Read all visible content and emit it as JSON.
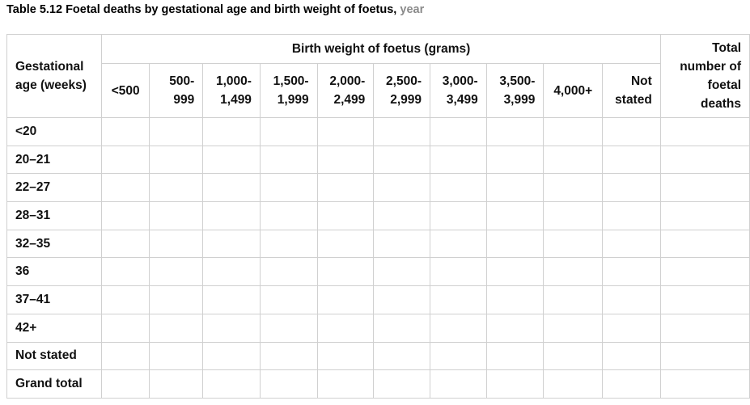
{
  "title": {
    "main": "Table 5.12 Foetal deaths by gestational age and birth weight of foetus,",
    "suffix": "year"
  },
  "table": {
    "row_header_label": "Gestational age (weeks)",
    "group_header": "Birth weight of foetus (grams)",
    "total_header": "Total number of foetal deaths",
    "weight_columns": [
      {
        "line1": "<500",
        "line2": ""
      },
      {
        "line1": "500-",
        "line2": "999"
      },
      {
        "line1": "1,000-",
        "line2": "1,499"
      },
      {
        "line1": "1,500-",
        "line2": "1,999"
      },
      {
        "line1": "2,000-",
        "line2": "2,499"
      },
      {
        "line1": "2,500-",
        "line2": "2,999"
      },
      {
        "line1": "3,000-",
        "line2": "3,499"
      },
      {
        "line1": "3,500-",
        "line2": "3,999"
      },
      {
        "line1": "4,000+",
        "line2": ""
      },
      {
        "line1": "Not",
        "line2": "stated"
      }
    ],
    "rows": [
      {
        "label": "<20"
      },
      {
        "label": "20–21"
      },
      {
        "label": "22–27"
      },
      {
        "label": "28–31"
      },
      {
        "label": "32–35"
      },
      {
        "label": "36"
      },
      {
        "label": "37–41"
      },
      {
        "label": "42+"
      },
      {
        "label": "Not stated"
      },
      {
        "label": "Grand total"
      }
    ]
  }
}
